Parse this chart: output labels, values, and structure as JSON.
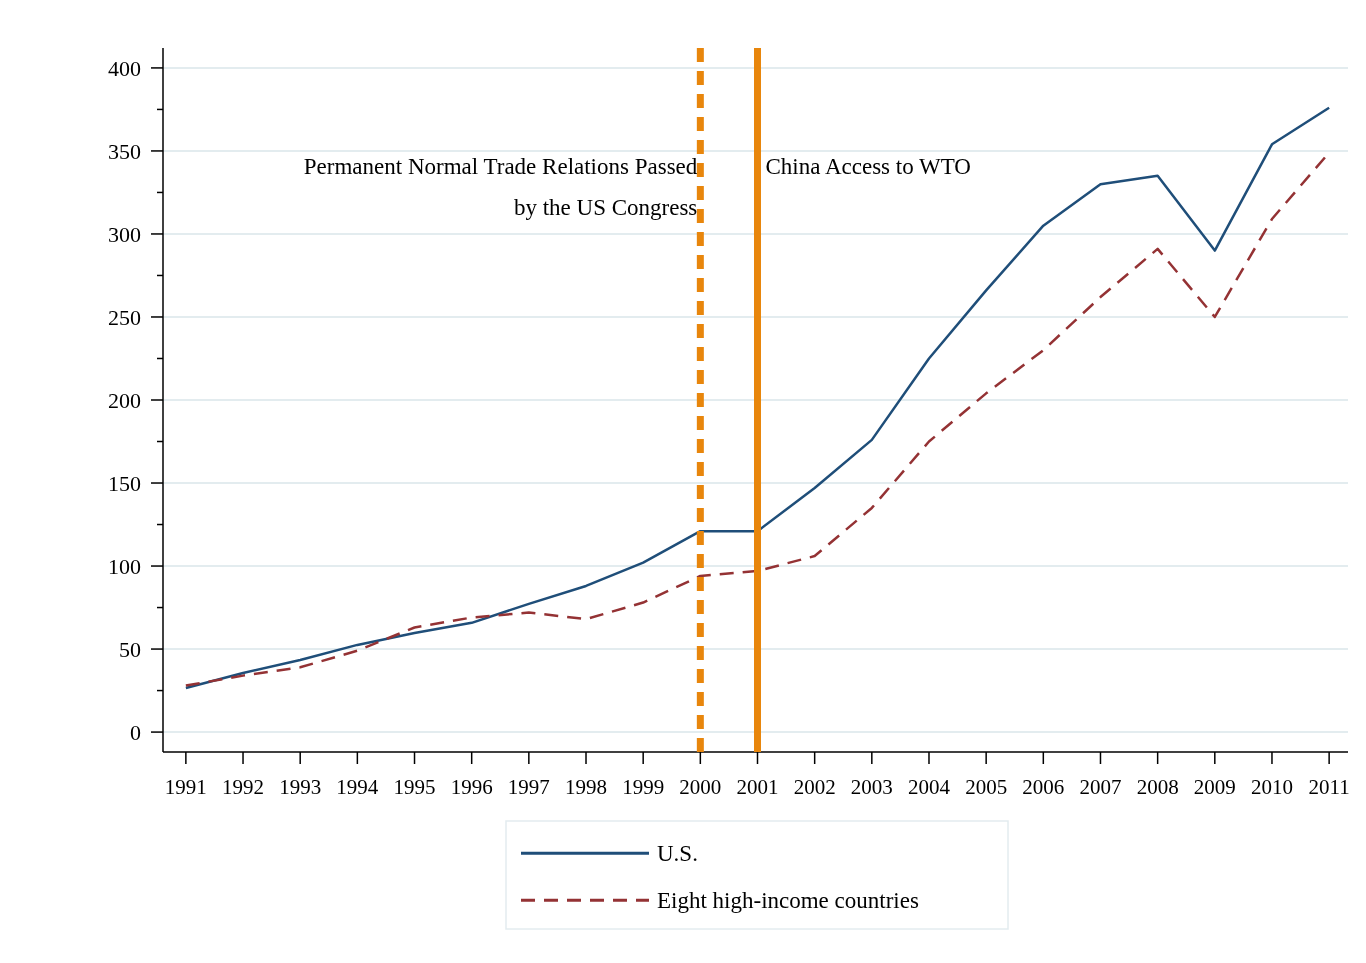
{
  "chart_data": {
    "type": "line",
    "x": [
      1991,
      1992,
      1993,
      1994,
      1995,
      1996,
      1997,
      1998,
      1999,
      2000,
      2001,
      2002,
      2003,
      2004,
      2005,
      2006,
      2007,
      2008,
      2009,
      2010,
      2011
    ],
    "series": [
      {
        "name": "U.S.",
        "color": "#1f4e79",
        "line_style": "solid",
        "values": [
          26.5,
          35.6,
          43.4,
          52.5,
          59.7,
          65.8,
          77.2,
          88,
          102,
          121,
          121,
          147,
          176,
          225,
          266,
          305,
          330,
          335,
          290,
          354,
          376
        ]
      },
      {
        "name": "Eight high-income countries",
        "color": "#943234",
        "line_style": "dashed",
        "values": [
          28,
          34,
          39,
          49,
          63,
          69,
          72,
          68,
          78,
          94,
          97,
          106,
          135,
          175,
          204,
          230,
          262,
          291,
          250,
          309,
          349
        ]
      }
    ],
    "xlim": [
      1990.6,
      2011.33
    ],
    "xticks": [
      1991,
      1992,
      1993,
      1994,
      1995,
      1996,
      1997,
      1998,
      1999,
      2000,
      2001,
      2002,
      2003,
      2004,
      2005,
      2006,
      2007,
      2008,
      2009,
      2010,
      2011
    ],
    "ylim": [
      -12,
      412
    ],
    "yticks": [
      0,
      {
        "value": 25,
        "label": null
      },
      50,
      {
        "value": 75,
        "label": null
      },
      100,
      {
        "value": 125,
        "label": null
      },
      150,
      {
        "value": 175,
        "label": null
      },
      200,
      {
        "value": 225,
        "label": null
      },
      250,
      {
        "value": 275,
        "label": null
      },
      300,
      {
        "value": 325,
        "label": null
      },
      350,
      {
        "value": 375,
        "label": null
      },
      400
    ],
    "grid": "y",
    "legend": "bottom",
    "ref_lines": [
      {
        "axis": "x",
        "value": 2000,
        "label": "Permanent Normal Trade Relations Passed by the US Congress",
        "color": "#e8860c",
        "line_style": "dashed"
      },
      {
        "axis": "x",
        "value": 2001,
        "label": "China Access to WTO",
        "color": "#e8860c",
        "line_style": "solid"
      }
    ]
  }
}
